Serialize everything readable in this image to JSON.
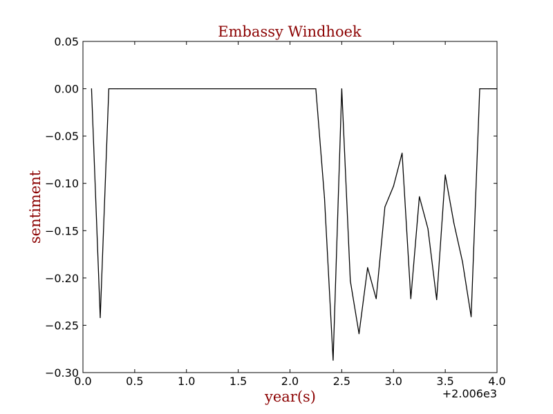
{
  "chart_data": {
    "type": "line",
    "title": "Embassy Windhoek",
    "xlabel": "year(s)",
    "ylabel": "sentiment",
    "x_offset_label": "+2.006e3",
    "xlim": [
      0.0,
      4.0
    ],
    "ylim": [
      -0.3,
      0.05
    ],
    "x_ticks": [
      0.0,
      0.5,
      1.0,
      1.5,
      2.0,
      2.5,
      3.0,
      3.5,
      4.0
    ],
    "x_tick_labels": [
      "0.0",
      "0.5",
      "1.0",
      "1.5",
      "2.0",
      "2.5",
      "3.0",
      "3.5",
      "4.0"
    ],
    "y_ticks": [
      0.05,
      0.0,
      -0.05,
      -0.1,
      -0.15,
      -0.2,
      -0.25,
      -0.3
    ],
    "y_tick_labels": [
      "0.05",
      "0.00",
      "−0.05",
      "−0.10",
      "−0.15",
      "−0.20",
      "−0.25",
      "−0.30"
    ],
    "grid": false,
    "line_color": "#000000",
    "label_color": "#8b0000",
    "series": [
      {
        "x": [
          0.083,
          0.167,
          0.25,
          0.333,
          2.25,
          2.333,
          2.417,
          2.5,
          2.583,
          2.667,
          2.75,
          2.833,
          2.917,
          3.0,
          3.083,
          3.167,
          3.25,
          3.333,
          3.417,
          3.5,
          3.583,
          3.667,
          3.75,
          3.833,
          3.917,
          4.0
        ],
        "y": [
          0.0,
          -0.242,
          0.0,
          0.0,
          0.0,
          -0.115,
          -0.287,
          0.0,
          -0.203,
          -0.259,
          -0.189,
          -0.222,
          -0.125,
          -0.103,
          -0.068,
          -0.222,
          -0.114,
          -0.148,
          -0.223,
          -0.091,
          -0.142,
          -0.183,
          -0.241,
          0.0,
          0.0,
          0.0
        ]
      }
    ]
  }
}
